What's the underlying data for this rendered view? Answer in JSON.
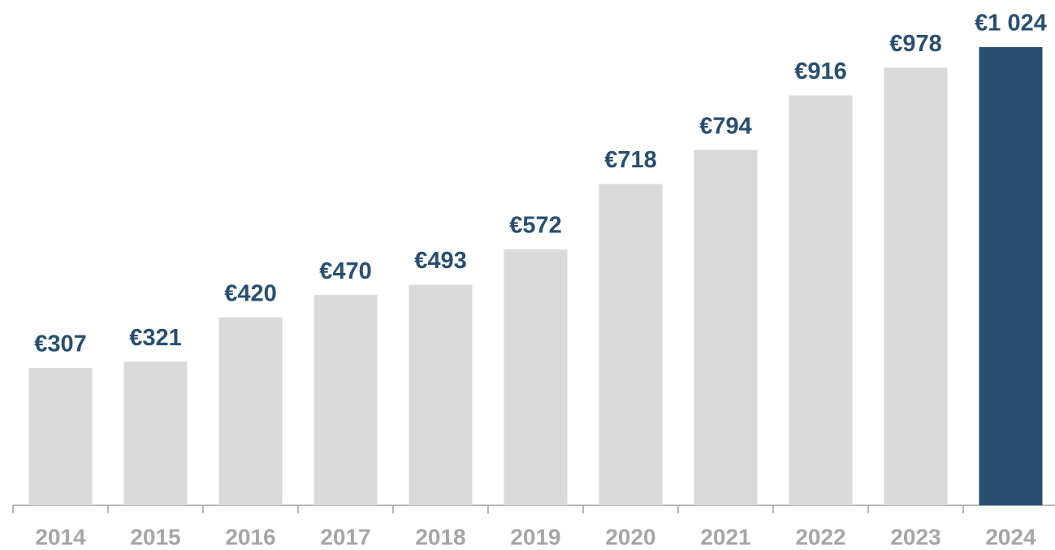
{
  "chart_data": {
    "type": "bar",
    "categories": [
      "2014",
      "2015",
      "2016",
      "2017",
      "2018",
      "2019",
      "2020",
      "2021",
      "2022",
      "2023",
      "2024"
    ],
    "values": [
      307,
      321,
      420,
      470,
      493,
      572,
      718,
      794,
      916,
      978,
      1024
    ],
    "value_labels": [
      "€307",
      "€321",
      "€420",
      "€470",
      "€493",
      "€572",
      "€718",
      "€794",
      "€916",
      "€978",
      "€1 024"
    ],
    "colors": [
      "#d9d9d9",
      "#d9d9d9",
      "#d9d9d9",
      "#d9d9d9",
      "#d9d9d9",
      "#d9d9d9",
      "#d9d9d9",
      "#d9d9d9",
      "#d9d9d9",
      "#d9d9d9",
      "#284f72"
    ]
  }
}
